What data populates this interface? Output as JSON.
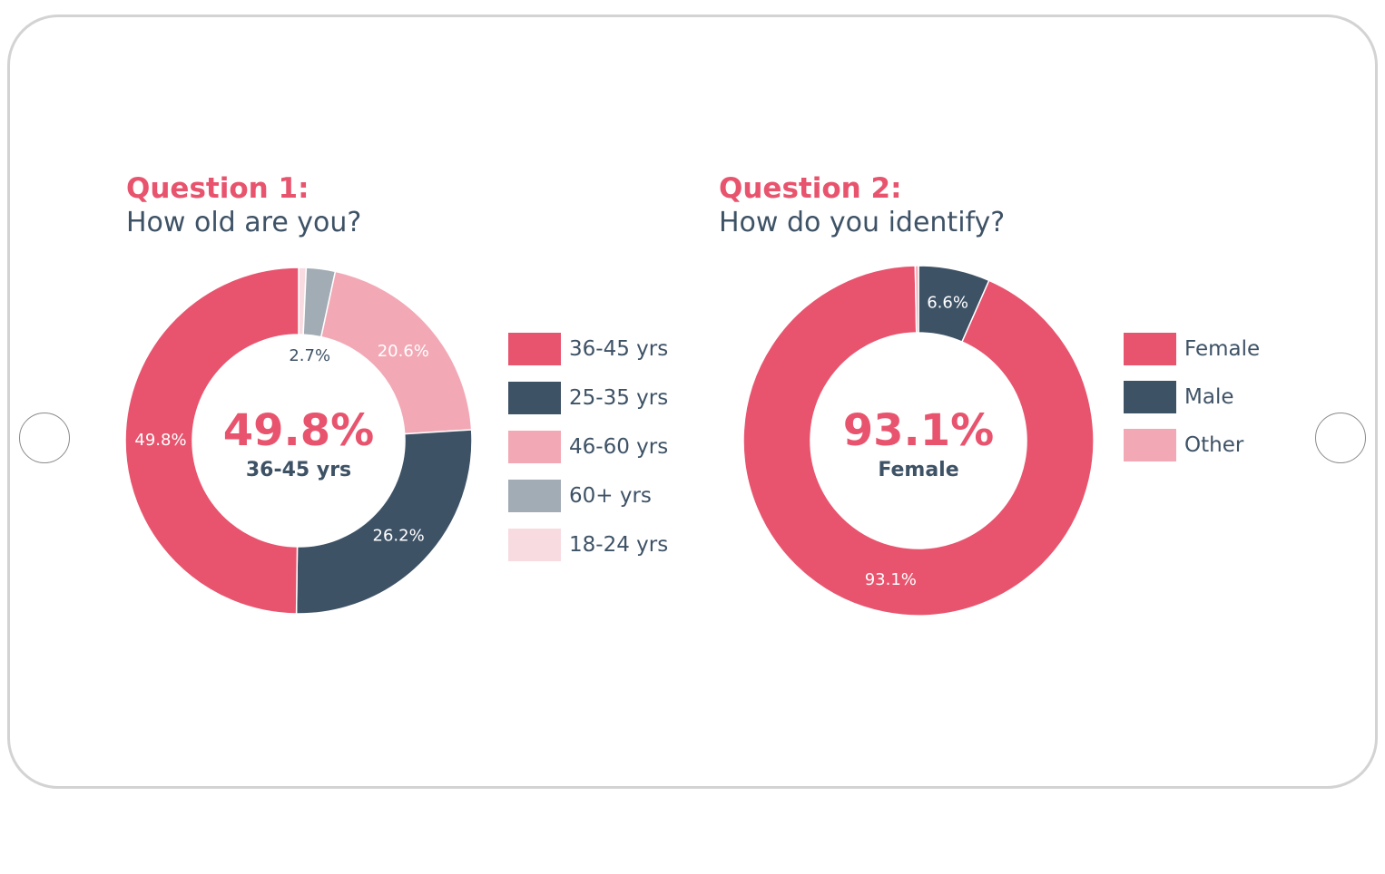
{
  "colors": {
    "accent": "#e8546e",
    "dark": "#3e5266",
    "light_pink": "#f2a9b5",
    "gray": "#a2acb5",
    "pale_pink": "#f8dbe0"
  },
  "chart_data": [
    {
      "type": "donut",
      "question_label": "Question 1:",
      "question_text": "How old are you?",
      "center_value": "49.8%",
      "center_label": "36-45 yrs",
      "slices": [
        {
          "label": "18-24 yrs",
          "value": 0.7,
          "color": "#f8dbe0",
          "value_label": ""
        },
        {
          "label": "60+ yrs",
          "value": 2.7,
          "color": "#a2acb5",
          "value_label": "2.7%"
        },
        {
          "label": "46-60 yrs",
          "value": 20.6,
          "color": "#f2a9b5",
          "value_label": "20.6%"
        },
        {
          "label": "25-35 yrs",
          "value": 26.2,
          "color": "#3e5266",
          "value_label": "26.2%"
        },
        {
          "label": "36-45 yrs",
          "value": 49.8,
          "color": "#e8546e",
          "value_label": "49.8%"
        }
      ],
      "legend": [
        {
          "label": "36-45 yrs",
          "color": "#e8546e"
        },
        {
          "label": "25-35 yrs",
          "color": "#3e5266"
        },
        {
          "label": "46-60 yrs",
          "color": "#f2a9b5"
        },
        {
          "label": "60+ yrs",
          "color": "#a2acb5"
        },
        {
          "label": "18-24 yrs",
          "color": "#f8dbe0"
        }
      ]
    },
    {
      "type": "donut",
      "question_label": "Question 2:",
      "question_text": "How do you identify?",
      "center_value": "93.1%",
      "center_label": "Female",
      "slices": [
        {
          "label": "Male",
          "value": 6.6,
          "color": "#3e5266",
          "value_label": "6.6%"
        },
        {
          "label": "Female",
          "value": 93.1,
          "color": "#e8546e",
          "value_label": "93.1%"
        },
        {
          "label": "Other",
          "value": 0.3,
          "color": "#f2a9b5",
          "value_label": ""
        }
      ],
      "legend": [
        {
          "label": "Female",
          "color": "#e8546e"
        },
        {
          "label": "Male",
          "color": "#3e5266"
        },
        {
          "label": "Other",
          "color": "#f2a9b5"
        }
      ]
    }
  ]
}
